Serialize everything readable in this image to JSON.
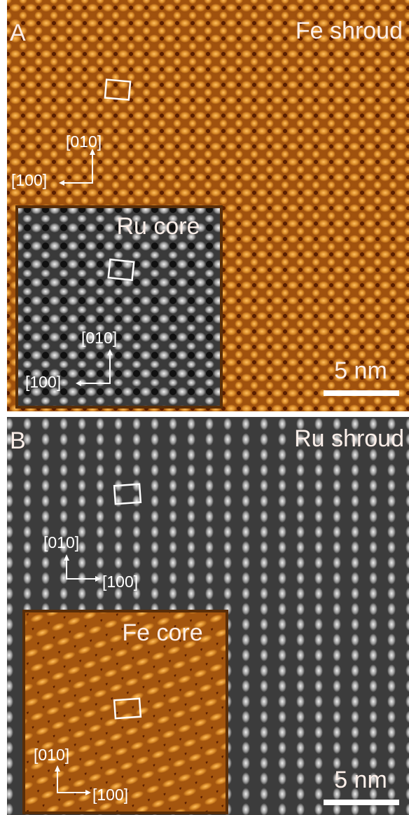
{
  "panels": [
    {
      "label": "A",
      "title": "Fe shroud",
      "directions": [
        "[010]",
        "[100]"
      ],
      "inset": {
        "title": "Ru core",
        "directions": [
          "[010]",
          "[100]"
        ]
      },
      "scale_bar": "5 nm"
    },
    {
      "label": "B",
      "title": "Ru shroud",
      "directions": [
        "[010]",
        "[100]"
      ],
      "inset": {
        "title": "Fe core",
        "directions": [
          "[010]",
          "[100]"
        ]
      },
      "scale_bar": "5 nm"
    }
  ]
}
